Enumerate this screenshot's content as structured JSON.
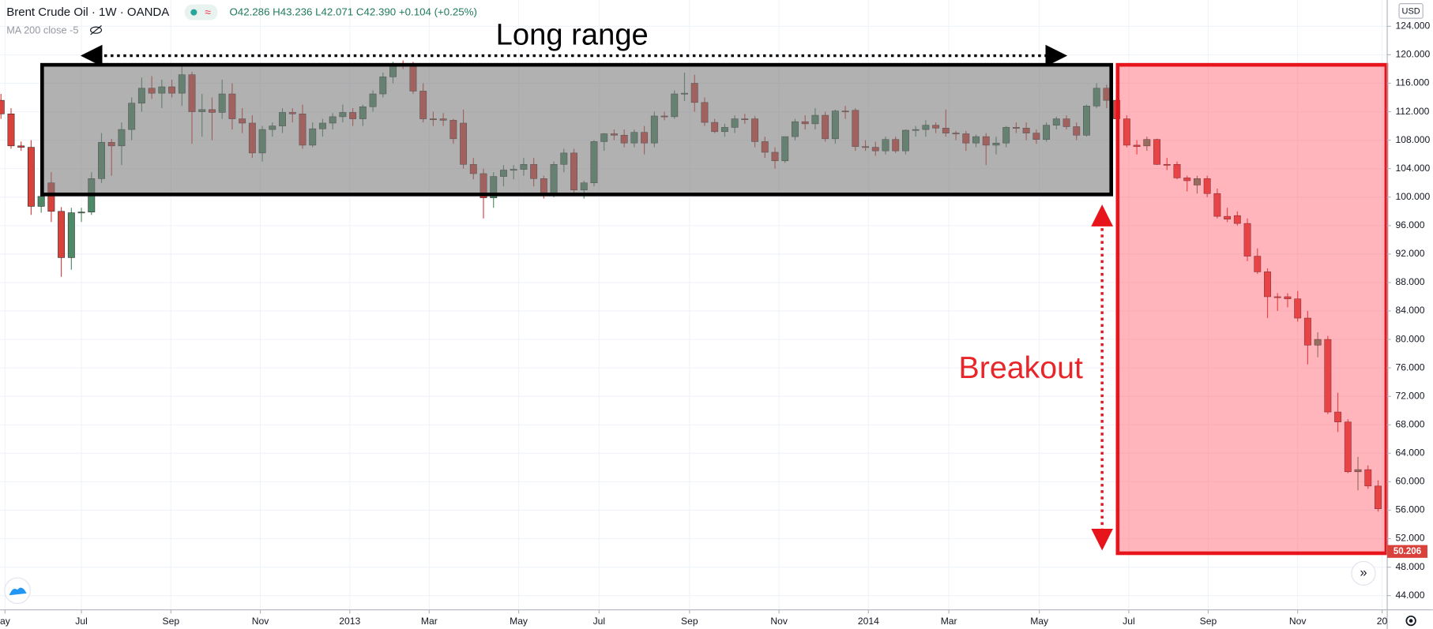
{
  "chart_data": {
    "type": "candlestick",
    "title": "Brent Crude Oil · 1W · OANDA",
    "ohlc_text": "O42.286 H43.236 L42.071 C42.390 +0.104 (+0.25%)",
    "indicator": "MA 200 close -5",
    "currency": "USD",
    "last_price": 50.206,
    "annotations": [
      "Long range",
      "Breakout"
    ],
    "up_color": "#4d8b68",
    "down_color": "#d9413b",
    "grid": true,
    "xlim": [
      -0.09,
      137.91
    ],
    "ylim": [
      42.0,
      127.7
    ],
    "yticks": [
      {
        "value": 44,
        "label": "44.000"
      },
      {
        "value": 48,
        "label": "48.000"
      },
      {
        "value": 52,
        "label": "52.000"
      },
      {
        "value": 56,
        "label": "56.000"
      },
      {
        "value": 60,
        "label": "60.000"
      },
      {
        "value": 64,
        "label": "64.000"
      },
      {
        "value": 68,
        "label": "68.000"
      },
      {
        "value": 72,
        "label": "72.000"
      },
      {
        "value": 76,
        "label": "76.000"
      },
      {
        "value": 80,
        "label": "80.000"
      },
      {
        "value": 84,
        "label": "84.000"
      },
      {
        "value": 88,
        "label": "88.000"
      },
      {
        "value": 92,
        "label": "92.000"
      },
      {
        "value": 96,
        "label": "96.000"
      },
      {
        "value": 100,
        "label": "100.000"
      },
      {
        "value": 104,
        "label": "104.000"
      },
      {
        "value": 108,
        "label": "108.000"
      },
      {
        "value": 112,
        "label": "112.000"
      },
      {
        "value": 116,
        "label": "116.000"
      },
      {
        "value": 120,
        "label": "120.000"
      },
      {
        "value": 124,
        "label": "124.000"
      }
    ],
    "xticks": [
      {
        "value": 0.4,
        "label": "ay"
      },
      {
        "value": 8,
        "label": "Jul"
      },
      {
        "value": 16.9,
        "label": "Sep"
      },
      {
        "value": 25.8,
        "label": "Nov"
      },
      {
        "value": 34.7,
        "label": "2013"
      },
      {
        "value": 42.6,
        "label": "Mar"
      },
      {
        "value": 51.5,
        "label": "May"
      },
      {
        "value": 59.5,
        "label": "Jul"
      },
      {
        "value": 68.5,
        "label": "Sep"
      },
      {
        "value": 77.4,
        "label": "Nov"
      },
      {
        "value": 86.3,
        "label": "2014"
      },
      {
        "value": 94.3,
        "label": "Mar"
      },
      {
        "value": 103.3,
        "label": "May"
      },
      {
        "value": 112.2,
        "label": "Jul"
      },
      {
        "value": 120.1,
        "label": "Sep"
      },
      {
        "value": 129,
        "label": "Nov"
      },
      {
        "value": 137.4,
        "label": "20"
      }
    ],
    "open": [
      113.6,
      111.7,
      107.2,
      107.0,
      98.7,
      102.0,
      98.0,
      91.5,
      97.8,
      97.9,
      102.6,
      107.7,
      107.2,
      109.5,
      113.2,
      115.3,
      114.6,
      115.5,
      114.6,
      117.2,
      112.0,
      112.3,
      111.9,
      114.5,
      111.0,
      110.4,
      106.2,
      109.5,
      110.0,
      111.9,
      111.7,
      107.3,
      109.6,
      110.4,
      111.3,
      111.9,
      111.0,
      112.7,
      114.5,
      116.9,
      118.6,
      118.4,
      114.9,
      111.0,
      111.0,
      110.8,
      110.4,
      104.6,
      103.3,
      99.9,
      102.9,
      103.8,
      103.9,
      104.6,
      102.6,
      100.5,
      104.6,
      106.2,
      101.0,
      102.0,
      107.8,
      108.9,
      108.7,
      107.6,
      109.1,
      107.6,
      111.4,
      111.3,
      114.5,
      116.0,
      113.3,
      110.5,
      109.2,
      109.8,
      111.0,
      111.0,
      107.8,
      106.3,
      105.1,
      108.5,
      110.6,
      110.3,
      111.5,
      108.2,
      112.1,
      112.2,
      107.1,
      107.0,
      106.5,
      108.1,
      106.5,
      109.4,
      109.5,
      110.1,
      109.7,
      109.0,
      108.9,
      107.6,
      108.5,
      107.3,
      107.6,
      109.8,
      109.7,
      109.0,
      108.1,
      110.1,
      111.0,
      109.9,
      108.7,
      112.8,
      115.3,
      113.6,
      111.0,
      107.3,
      107.2,
      108.1,
      104.6,
      104.6,
      102.7,
      101.7,
      102.6,
      100.5,
      97.3,
      97.4,
      96.3,
      91.7,
      89.5,
      86.0,
      86.0,
      85.7,
      83.0,
      79.2,
      80.0,
      69.8,
      68.4,
      61.4,
      61.7,
      59.4
    ],
    "high": [
      114.5,
      112.5,
      107.8,
      108.0,
      101.0,
      103.5,
      98.6,
      98.5,
      98.5,
      103.5,
      109.0,
      108.2,
      110.5,
      114.0,
      116.8,
      117.0,
      116.5,
      116.5,
      118.5,
      117.6,
      114.5,
      114.0,
      116.5,
      116.0,
      112.5,
      111.5,
      110.0,
      110.5,
      112.5,
      112.5,
      113.0,
      110.5,
      111.0,
      111.8,
      113.0,
      112.5,
      113.0,
      115.0,
      117.5,
      119.0,
      119.2,
      119.0,
      116.0,
      112.0,
      111.8,
      111.0,
      112.3,
      105.5,
      104.0,
      103.5,
      104.5,
      104.5,
      105.5,
      105.5,
      103.0,
      105.0,
      106.8,
      106.8,
      102.3,
      108.0,
      109.0,
      109.5,
      109.5,
      109.5,
      110.0,
      112.0,
      112.0,
      115.0,
      117.5,
      117.2,
      114.0,
      111.0,
      110.3,
      111.5,
      111.7,
      111.4,
      108.5,
      107.0,
      108.5,
      111.0,
      111.5,
      112.5,
      112.0,
      112.3,
      112.8,
      112.5,
      108.0,
      107.8,
      108.5,
      108.5,
      109.5,
      110.0,
      110.8,
      110.5,
      112.3,
      109.3,
      109.3,
      108.8,
      109.0,
      108.5,
      110.0,
      110.5,
      110.5,
      109.5,
      110.5,
      111.3,
      111.5,
      110.5,
      113.0,
      116.0,
      115.8,
      114.0,
      111.5,
      108.0,
      108.5,
      108.2,
      105.5,
      105.0,
      103.0,
      103.0,
      103.0,
      101.2,
      98.5,
      98.0,
      97.0,
      92.8,
      90.0,
      86.5,
      86.5,
      86.8,
      84.0,
      81.0,
      80.5,
      72.5,
      68.8,
      63.5,
      62.3,
      60.2
    ],
    "low": [
      111.0,
      106.8,
      106.5,
      97.5,
      97.8,
      96.5,
      88.8,
      89.8,
      96.5,
      97.5,
      102.0,
      103.0,
      104.5,
      108.0,
      112.0,
      113.8,
      112.5,
      114.0,
      112.8,
      107.5,
      108.5,
      108.0,
      111.0,
      109.5,
      109.0,
      105.5,
      105.0,
      108.5,
      109.0,
      110.5,
      106.8,
      107.0,
      108.5,
      109.5,
      110.5,
      110.0,
      110.0,
      112.0,
      114.0,
      116.0,
      118.0,
      114.5,
      110.5,
      110.0,
      110.0,
      107.5,
      104.0,
      102.5,
      97.0,
      98.5,
      101.5,
      102.5,
      103.0,
      101.5,
      99.8,
      100.0,
      103.5,
      100.5,
      99.8,
      101.5,
      106.5,
      108.0,
      107.0,
      107.0,
      106.0,
      107.0,
      110.8,
      111.0,
      113.5,
      112.0,
      110.0,
      109.0,
      108.5,
      109.0,
      110.3,
      107.0,
      105.5,
      104.0,
      104.8,
      108.0,
      109.5,
      109.5,
      107.8,
      107.5,
      111.0,
      106.5,
      106.5,
      105.8,
      106.0,
      106.2,
      106.0,
      108.5,
      108.5,
      109.0,
      108.5,
      108.0,
      106.5,
      107.0,
      104.5,
      106.0,
      107.0,
      109.0,
      108.0,
      107.5,
      107.8,
      109.5,
      109.5,
      108.0,
      108.5,
      112.5,
      112.5,
      110.5,
      107.0,
      106.0,
      106.5,
      104.5,
      103.8,
      102.5,
      100.8,
      100.5,
      100.0,
      97.0,
      96.5,
      96.0,
      91.0,
      89.2,
      83.0,
      84.0,
      84.5,
      82.5,
      76.5,
      77.5,
      69.5,
      67.0,
      61.2,
      58.8,
      59.0,
      55.8
    ],
    "close": [
      111.7,
      107.2,
      107.0,
      98.7,
      100.1,
      98.0,
      91.5,
      97.8,
      97.9,
      102.6,
      107.7,
      107.2,
      109.5,
      113.2,
      115.3,
      114.6,
      115.5,
      114.6,
      117.2,
      112.0,
      112.3,
      111.9,
      114.5,
      111.0,
      110.4,
      106.2,
      109.5,
      110.0,
      111.9,
      111.7,
      107.3,
      109.6,
      110.4,
      111.3,
      111.9,
      111.0,
      112.7,
      114.5,
      116.9,
      118.7,
      118.4,
      114.9,
      111.0,
      110.9,
      110.8,
      108.2,
      104.6,
      103.3,
      99.9,
      102.9,
      103.8,
      103.9,
      104.6,
      102.6,
      100.5,
      104.6,
      106.2,
      101.0,
      102.0,
      107.8,
      108.9,
      108.7,
      107.6,
      109.1,
      107.6,
      111.4,
      111.3,
      114.5,
      114.6,
      113.3,
      110.5,
      109.2,
      109.8,
      111.0,
      110.9,
      107.8,
      106.3,
      105.1,
      108.5,
      110.6,
      110.3,
      111.5,
      108.2,
      112.1,
      112.0,
      107.1,
      107.0,
      106.5,
      108.1,
      106.5,
      109.4,
      109.5,
      110.1,
      109.7,
      109.0,
      108.9,
      107.6,
      108.5,
      107.3,
      107.6,
      109.8,
      109.7,
      109.0,
      108.1,
      110.1,
      111.0,
      109.9,
      108.7,
      112.8,
      115.3,
      113.6,
      111.0,
      107.3,
      107.1,
      108.1,
      104.6,
      104.5,
      102.7,
      102.3,
      102.6,
      100.5,
      97.3,
      96.9,
      96.3,
      91.7,
      89.5,
      86.0,
      85.9,
      85.7,
      83.0,
      79.2,
      80.0,
      69.8,
      68.4,
      61.4,
      61.7,
      59.4,
      56.2
    ]
  }
}
